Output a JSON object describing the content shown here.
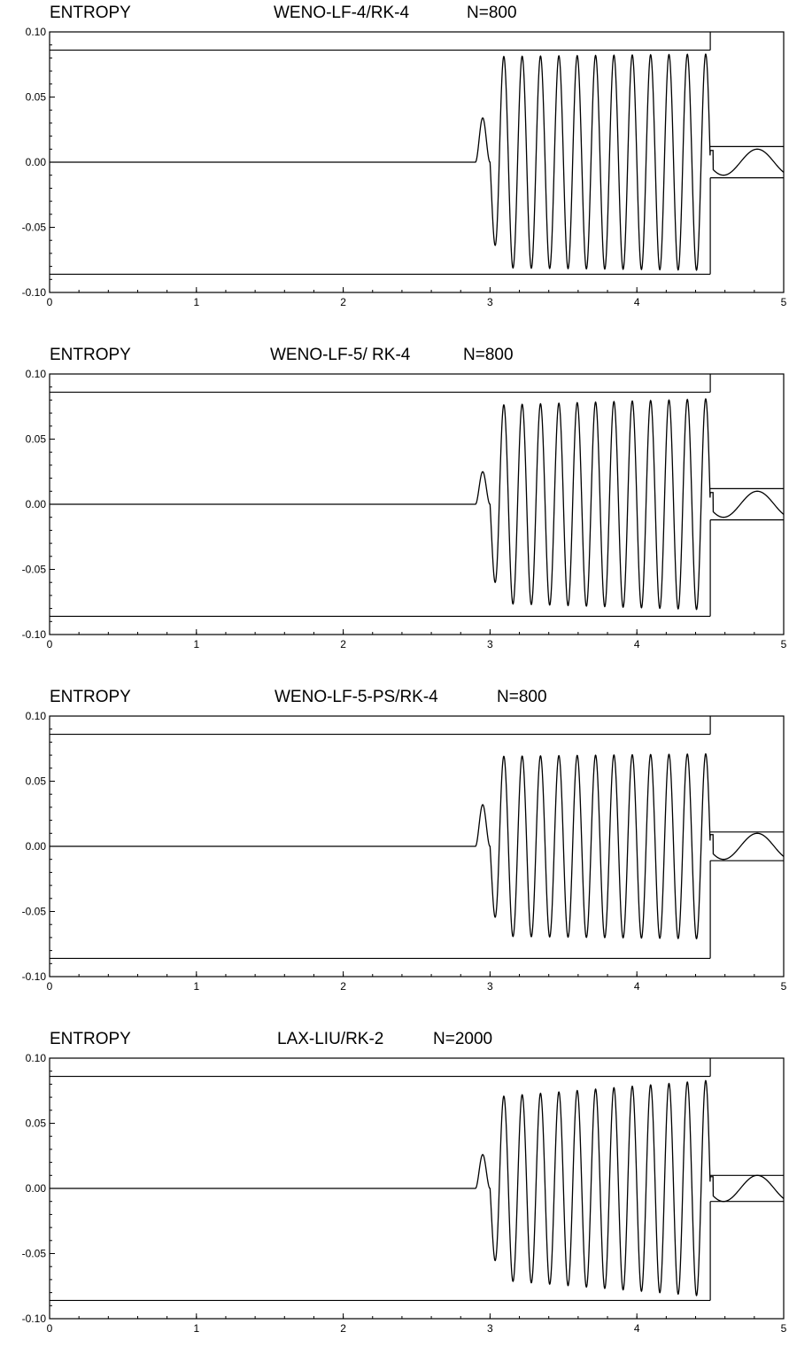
{
  "chart_data": [
    {
      "type": "line",
      "title_left": "ENTROPY",
      "title_method": "WENO-LF-4/RK-4",
      "title_n": "N=800",
      "xlim": [
        0,
        5
      ],
      "ylim": [
        -0.1,
        0.1
      ],
      "xticks": [
        "0",
        "1",
        "2",
        "3",
        "4",
        "5"
      ],
      "yticks": [
        "0.10",
        "0.05",
        "0.00",
        "-0.05",
        "-0.10"
      ],
      "grid": false,
      "series": [
        {
          "role": "reference",
          "description": "exact entropy envelope",
          "envelope_levels": [
            0.086,
            0.012
          ],
          "shock_x": 4.5
        },
        {
          "role": "numerical",
          "flat_until": 2.9,
          "first_peak_x": 2.95,
          "first_peak_y": 0.034,
          "oscillation_start": 3.0,
          "oscillation_end": 4.5,
          "oscillation_count": 12,
          "amplitude_start": 0.081,
          "amplitude_end": 0.083,
          "post_shock_amplitude": 0.01,
          "post_shock_peak_x": 4.82
        }
      ]
    },
    {
      "type": "line",
      "title_left": "ENTROPY",
      "title_method": "WENO-LF-5/ RK-4",
      "title_n": "N=800",
      "xlim": [
        0,
        5
      ],
      "ylim": [
        -0.1,
        0.1
      ],
      "xticks": [
        "0",
        "1",
        "2",
        "3",
        "4",
        "5"
      ],
      "yticks": [
        "0.10",
        "0.05",
        "0.00",
        "-0.05",
        "-0.10"
      ],
      "grid": false,
      "series": [
        {
          "role": "reference",
          "description": "exact entropy envelope",
          "envelope_levels": [
            0.086,
            0.012
          ],
          "shock_x": 4.5
        },
        {
          "role": "numerical",
          "flat_until": 2.9,
          "first_peak_x": 2.95,
          "first_peak_y": 0.025,
          "oscillation_start": 3.0,
          "oscillation_end": 4.5,
          "oscillation_count": 12,
          "amplitude_start": 0.076,
          "amplitude_end": 0.081,
          "post_shock_amplitude": 0.01,
          "post_shock_peak_x": 4.82
        }
      ]
    },
    {
      "type": "line",
      "title_left": "ENTROPY",
      "title_method": "WENO-LF-5-PS/RK-4",
      "title_n": "N=800",
      "xlim": [
        0,
        5
      ],
      "ylim": [
        -0.1,
        0.1
      ],
      "xticks": [
        "0",
        "1",
        "2",
        "3",
        "4",
        "5"
      ],
      "yticks": [
        "0.10",
        "0.05",
        "0.00",
        "-0.05",
        "-0.10"
      ],
      "grid": false,
      "series": [
        {
          "role": "reference",
          "description": "exact entropy envelope",
          "envelope_levels": [
            0.086,
            0.011
          ],
          "shock_x": 4.5
        },
        {
          "role": "numerical",
          "flat_until": 2.9,
          "first_peak_x": 2.96,
          "first_peak_y": 0.032,
          "oscillation_start": 3.0,
          "oscillation_end": 4.5,
          "oscillation_count": 12,
          "amplitude_start": 0.069,
          "amplitude_end": 0.071,
          "post_shock_amplitude": 0.01,
          "post_shock_peak_x": 4.82
        }
      ]
    },
    {
      "type": "line",
      "title_left": "ENTROPY",
      "title_method": "LAX-LIU/RK-2",
      "title_n": "N=2000",
      "xlim": [
        0,
        5
      ],
      "ylim": [
        -0.1,
        0.1
      ],
      "xticks": [
        "0",
        "1",
        "2",
        "3",
        "4",
        "5"
      ],
      "yticks": [
        "0.10",
        "0.05",
        "0.00",
        "-0.05",
        "-0.10"
      ],
      "grid": false,
      "series": [
        {
          "role": "reference",
          "description": "exact entropy envelope",
          "envelope_levels": [
            0.086,
            0.01
          ],
          "shock_x": 4.5
        },
        {
          "role": "numerical",
          "flat_until": 2.9,
          "first_peak_x": 2.95,
          "first_peak_y": 0.026,
          "oscillation_start": 3.0,
          "oscillation_end": 4.5,
          "oscillation_count": 12,
          "amplitude_start": 0.07,
          "amplitude_end": 0.083,
          "post_shock_amplitude": 0.01,
          "post_shock_peak_x": 4.82
        }
      ]
    }
  ]
}
